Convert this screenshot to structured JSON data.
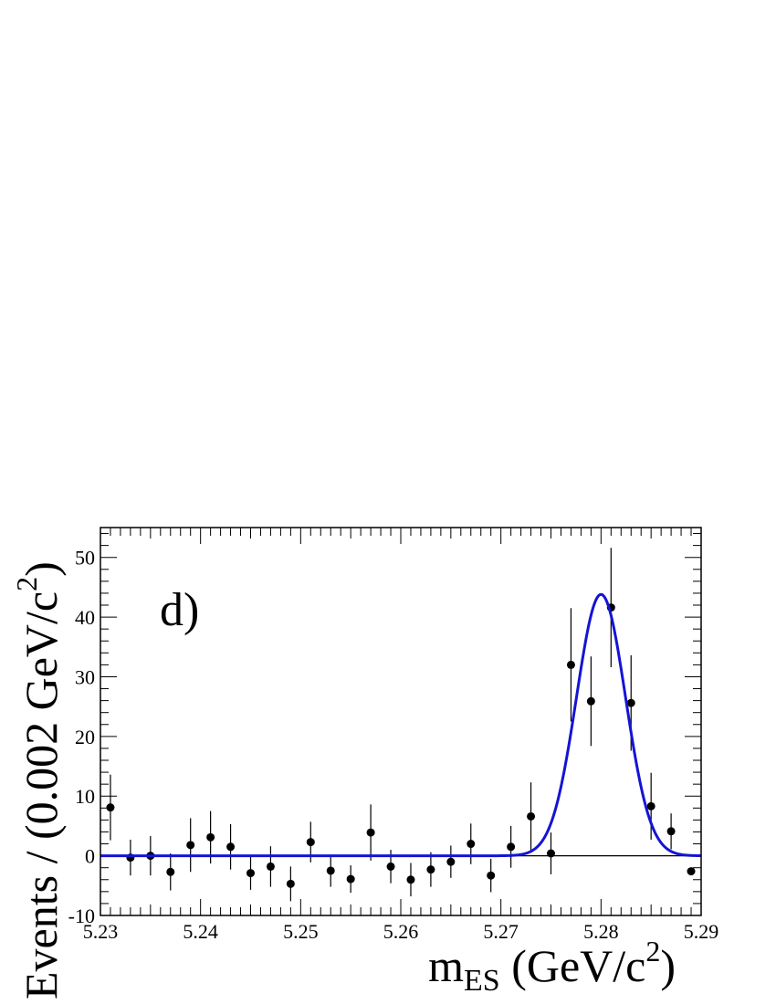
{
  "chart_data": {
    "type": "scatter",
    "panel_label": "d)",
    "xlabel": {
      "main": "m",
      "sub": "ES",
      "unit_open": " (GeV/c",
      "sup": "2",
      "unit_close": ")"
    },
    "ylabel": {
      "main": "Events / (0.002 GeV/c",
      "sup": "2",
      "close": ")"
    },
    "xlim": [
      5.23,
      5.29
    ],
    "ylim": [
      -10,
      55
    ],
    "x_ticks": [
      "5.23",
      "5.24",
      "5.25",
      "5.26",
      "5.27",
      "5.28",
      "5.29"
    ],
    "y_ticks": [
      "-10",
      "0",
      "10",
      "20",
      "30",
      "40",
      "50"
    ],
    "grid": false,
    "series": [
      {
        "kind": "points_with_errors",
        "color": "#000000",
        "points": [
          {
            "x": 5.231,
            "y": 8.1,
            "err": 5.5
          },
          {
            "x": 5.233,
            "y": -0.3,
            "err": 3.0
          },
          {
            "x": 5.235,
            "y": 0.0,
            "err": 3.3
          },
          {
            "x": 5.237,
            "y": -2.7,
            "err": 3.1
          },
          {
            "x": 5.239,
            "y": 1.8,
            "err": 4.5
          },
          {
            "x": 5.241,
            "y": 3.1,
            "err": 4.4
          },
          {
            "x": 5.243,
            "y": 1.5,
            "err": 3.8
          },
          {
            "x": 5.245,
            "y": -2.9,
            "err": 2.8
          },
          {
            "x": 5.247,
            "y": -1.8,
            "err": 3.4
          },
          {
            "x": 5.249,
            "y": -4.7,
            "err": 2.9
          },
          {
            "x": 5.251,
            "y": 2.3,
            "err": 3.4
          },
          {
            "x": 5.253,
            "y": -2.5,
            "err": 2.7
          },
          {
            "x": 5.255,
            "y": -3.9,
            "err": 2.3
          },
          {
            "x": 5.257,
            "y": 3.9,
            "err": 4.7
          },
          {
            "x": 5.259,
            "y": -1.8,
            "err": 2.8
          },
          {
            "x": 5.261,
            "y": -4.0,
            "err": 2.8
          },
          {
            "x": 5.263,
            "y": -2.3,
            "err": 2.9
          },
          {
            "x": 5.265,
            "y": -1.0,
            "err": 2.7
          },
          {
            "x": 5.267,
            "y": 2.0,
            "err": 3.4
          },
          {
            "x": 5.269,
            "y": -3.3,
            "err": 2.8
          },
          {
            "x": 5.271,
            "y": 1.5,
            "err": 3.5
          },
          {
            "x": 5.273,
            "y": 6.6,
            "err": 5.7
          },
          {
            "x": 5.275,
            "y": 0.4,
            "err": 3.5
          },
          {
            "x": 5.277,
            "y": 32.0,
            "err": 9.5
          },
          {
            "x": 5.279,
            "y": 25.9,
            "err": 7.5
          },
          {
            "x": 5.281,
            "y": 41.6,
            "err": 10.0
          },
          {
            "x": 5.283,
            "y": 25.6,
            "err": 8.0
          },
          {
            "x": 5.285,
            "y": 8.3,
            "err": 5.6
          },
          {
            "x": 5.287,
            "y": 4.1,
            "err": 3.0
          },
          {
            "x": 5.289,
            "y": -2.6,
            "err": 0.0
          }
        ]
      },
      {
        "kind": "fit_curve",
        "shape": "gaussian",
        "color": "#1414d4",
        "mean": 5.28,
        "sigma": 0.00245,
        "amplitude": 43.8,
        "baseline": 0.0
      }
    ],
    "reference_line": {
      "y": 0,
      "color": "#000000"
    }
  }
}
